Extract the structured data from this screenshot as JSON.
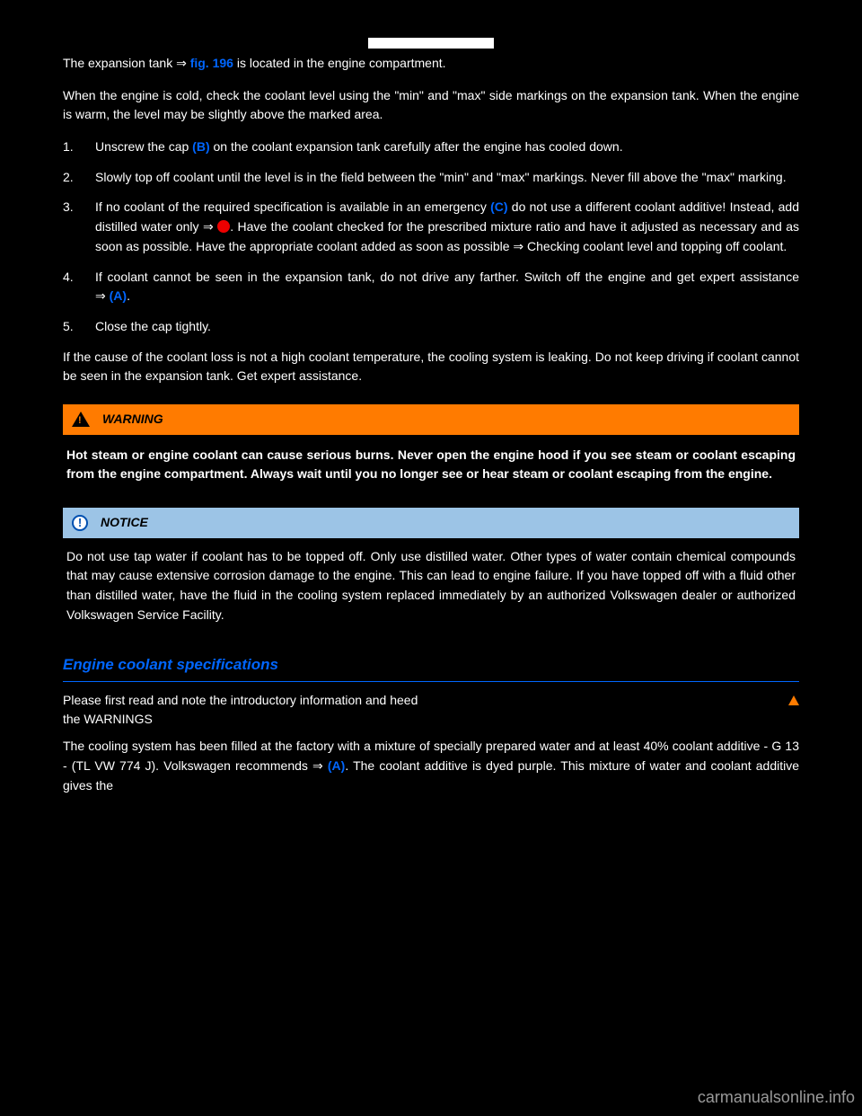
{
  "intro": {
    "p1_a": "The expansion tank ⇒ ",
    "p1_ref": "fig. 196",
    "p1_b": " is located in the engine compartment.",
    "p2": "When the engine is cold, check the coolant level using the \"min\" and \"max\" side markings on the expansion tank. When the engine is warm, the level may be slightly above the marked area."
  },
  "steps": [
    {
      "n": "1.",
      "a": "Unscrew the cap ",
      "ref": "(B)",
      "b": " on the coolant expansion tank carefully after the engine has cooled down."
    },
    {
      "n": "2.",
      "a": "Slowly top off coolant until the level is in the field between the \"min\" and \"max\" markings. Never fill above the \"max\" marking.",
      "ref": "",
      "b": ""
    },
    {
      "n": "3.",
      "a": "If no coolant of the required specification is available in an emergency ",
      "ref": "(C)",
      "b": " do not use a different coolant additive! Instead, add distilled water only ⇒ ",
      "icon": true,
      "c": ". Have the coolant checked for the prescribed mixture ratio and have it adjusted as necessary and as soon as possible. Have the appropriate coolant added as soon as possible ⇒ Checking coolant level and topping off coolant."
    },
    {
      "n": "4.",
      "a": "If coolant cannot be seen in the expansion tank, do not drive any farther. Switch off the engine and get expert assistance ⇒ ",
      "ref": "(A)",
      "b": "."
    },
    {
      "n": "5.",
      "a": "Close the cap tightly.",
      "ref": "",
      "b": ""
    }
  ],
  "afterSteps": "If the cause of the coolant loss is not a high coolant temperature, the cooling system is leaking. Do not keep driving if coolant cannot be seen in the expansion tank. Get expert assistance.",
  "warning": {
    "title": "WARNING",
    "body": "Hot steam or engine coolant can cause serious burns. Never open the engine hood if you see steam or coolant escaping from the engine compartment. Always wait until you no longer see or hear steam or coolant escaping from the engine."
  },
  "notice": {
    "title": "NOTICE",
    "body": "Do not use tap water if coolant has to be topped off. Only use distilled water. Other types of water contain chemical compounds that may cause extensive corrosion damage to the engine. This can lead to engine failure. If you have topped off with a fluid other than distilled water, have the fluid in the cooling system replaced immediately by an authorized Volkswagen dealer or authorized Volkswagen Service Facility."
  },
  "specHeading": "Engine coolant specifications",
  "footer": {
    "note1": "Please first read and note the introductory information and heed the WARNINGS",
    "note2_a": "The cooling system has been filled at the factory with a mixture of specially prepared water and at least 40% coolant additive - G 13 - (TL VW 774 J). Volkswagen recommends ⇒ ",
    "note2_ref": "(A)",
    "note2_b": ". The coolant additive is dyed purple. This mixture of water and coolant additive gives the"
  },
  "watermark": "carmanualsonline.info",
  "colors": {
    "link": "#0066ff",
    "warningBg": "#ff7b00",
    "noticeBg": "#9cc4e6",
    "iconRed": "#e00"
  }
}
